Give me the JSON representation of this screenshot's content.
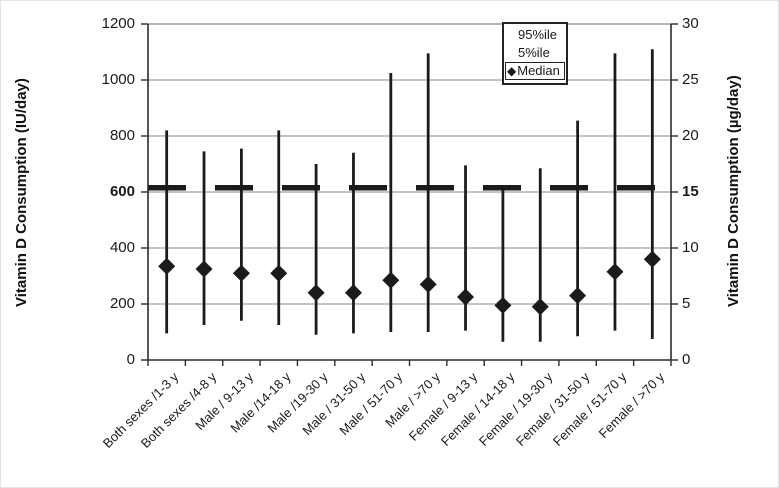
{
  "chart_data": {
    "type": "errorbar",
    "title": "",
    "categories": [
      "Both sexes /1-3 y",
      "Both sexes /4-8 y",
      "Male / 9-13 y",
      "Male /14-18 y",
      "Male /19-30 y",
      "Male / 31-50 y",
      "Male / 51-70 y",
      "Male / >70 y",
      "Female / 9-13 y",
      "Female / 14-18 y",
      "Female / 19-30 y",
      "Female / 31-50 y",
      "Female / 51-70 y",
      "Female / >70 y"
    ],
    "series": [
      {
        "name": "95%ile",
        "role": "whisker-top",
        "values_iu_per_day": [
          820,
          745,
          755,
          820,
          700,
          740,
          1025,
          1095,
          695,
          620,
          685,
          855,
          1095,
          1110
        ]
      },
      {
        "name": "Median",
        "role": "diamond-marker",
        "values_iu_per_day": [
          335,
          325,
          310,
          310,
          240,
          240,
          285,
          270,
          225,
          195,
          190,
          230,
          315,
          360
        ]
      },
      {
        "name": "5%ile",
        "role": "whisker-bottom",
        "values_iu_per_day": [
          95,
          125,
          140,
          125,
          90,
          95,
          100,
          100,
          105,
          65,
          65,
          85,
          105,
          75
        ]
      }
    ],
    "left_axis": {
      "label": "Vitamin D Consumption (IU/day)",
      "ticks": [
        0,
        200,
        400,
        600,
        800,
        1000,
        1200
      ],
      "bold_tick": 600,
      "range": [
        0,
        1200
      ]
    },
    "right_axis": {
      "label": "Vitamin D Consumption (µg/day)",
      "ticks": [
        0,
        5,
        10,
        15,
        20,
        25,
        30
      ],
      "bold_tick": 15,
      "range": [
        0,
        30
      ]
    },
    "reference_line": {
      "value_iu_per_day": 615,
      "style": "thick-dashed"
    },
    "legend": {
      "entries": [
        "95%ile",
        "5%ile",
        "Median"
      ],
      "median_marker": "diamond",
      "position": "top-inside"
    },
    "grid": true,
    "colors": {
      "marker": "#1b1b1b",
      "gridline": "#8a8a8a",
      "axis": "#2b2b2b",
      "background": "#ffffff"
    }
  }
}
